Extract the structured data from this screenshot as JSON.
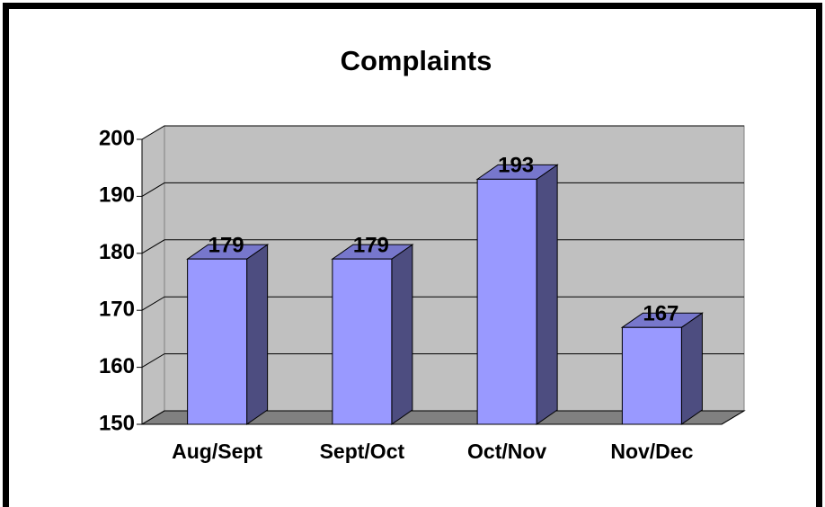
{
  "chart_data": {
    "type": "bar3d",
    "title": "Complaints",
    "categories": [
      "Aug/Sept",
      "Sept/Oct",
      "Oct/Nov",
      "Nov/Dec"
    ],
    "values": [
      179,
      179,
      193,
      167
    ],
    "color": "#9999ff",
    "ylim": [
      150,
      200
    ],
    "yticks": [
      150,
      160,
      170,
      180,
      190,
      200
    ],
    "grid": true
  }
}
